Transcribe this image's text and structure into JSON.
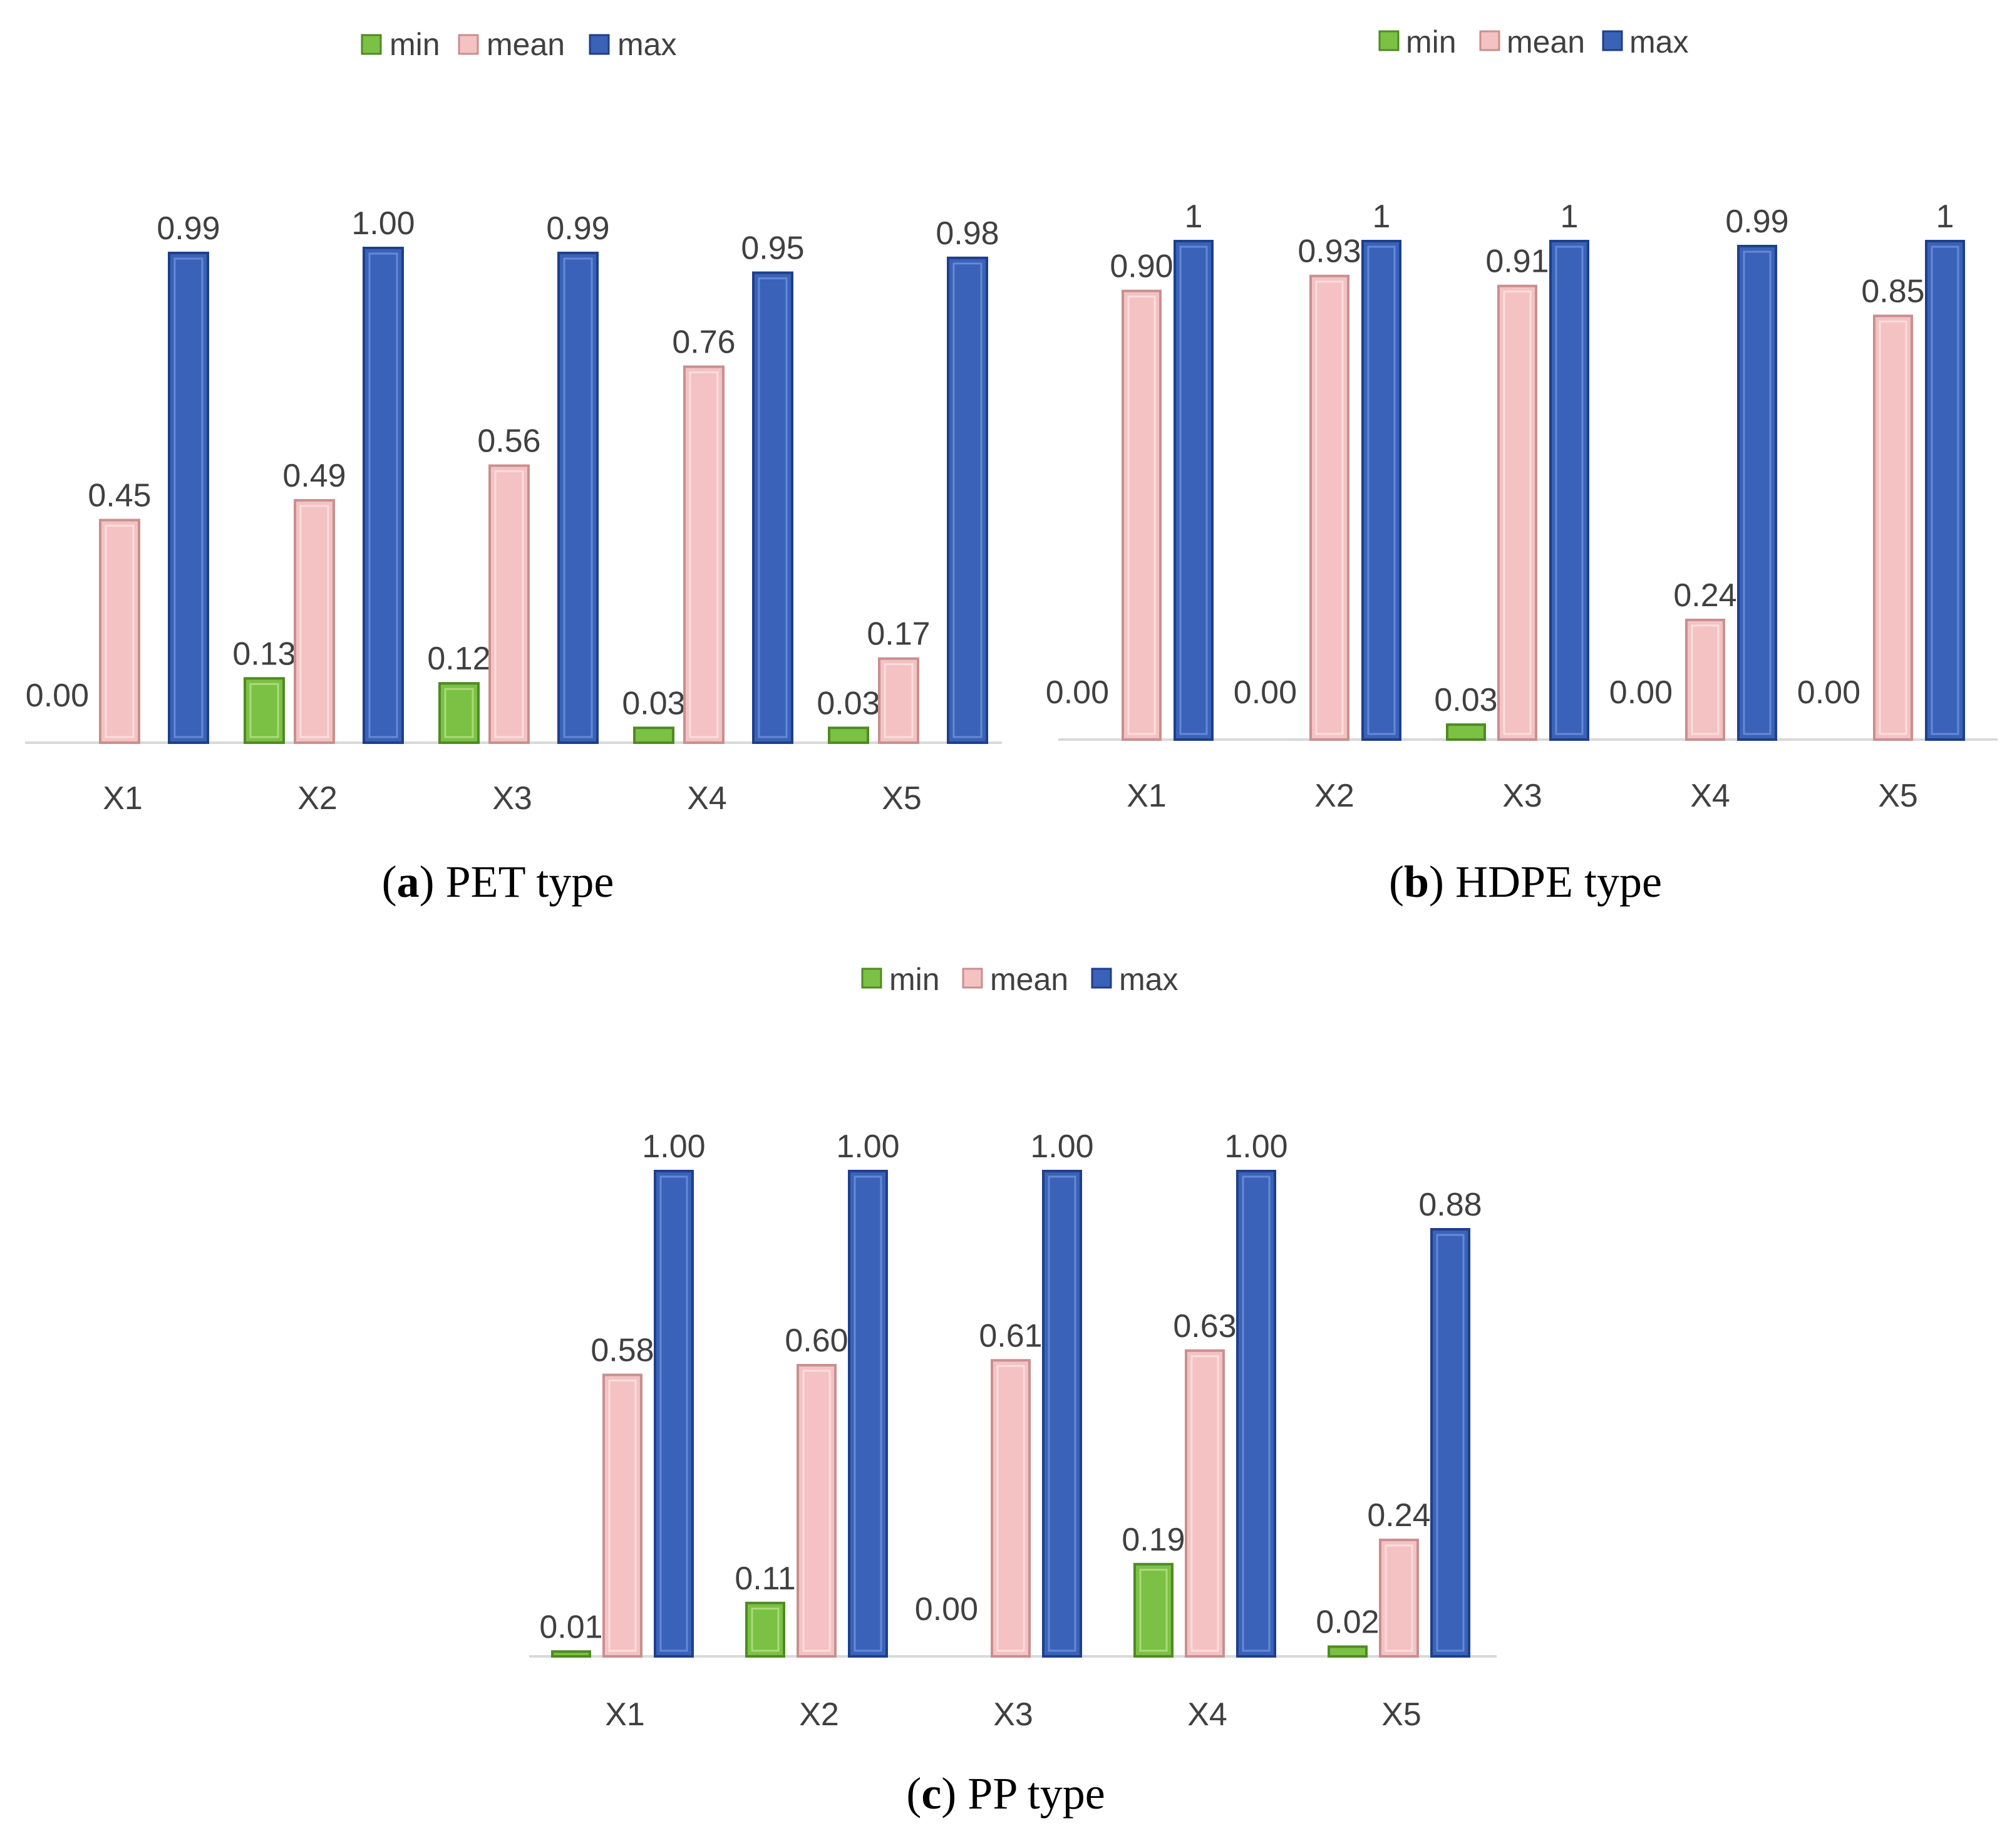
{
  "colors": {
    "min": "#7bc143",
    "mean": "#f4c2c2",
    "max": "#3a62b8",
    "axis": "#d9d9d9",
    "text": "#404040"
  },
  "legend": {
    "min": "min",
    "mean": "mean",
    "max": "max"
  },
  "chart_data": [
    {
      "type": "bar",
      "panel": "a",
      "caption_letter": "a",
      "caption_text": " PET type",
      "categories": [
        "X1",
        "X2",
        "X3",
        "X4",
        "X5"
      ],
      "ylim": [
        0,
        1.0
      ],
      "series": [
        {
          "name": "min",
          "values": [
            0.0,
            0.13,
            0.12,
            0.03,
            0.03
          ],
          "labels": [
            "0.00",
            "0.13",
            "0.12",
            "0.03",
            "0.03"
          ]
        },
        {
          "name": "mean",
          "values": [
            0.45,
            0.49,
            0.56,
            0.76,
            0.17
          ],
          "labels": [
            "0.45",
            "0.49",
            "0.56",
            "0.76",
            "0.17"
          ]
        },
        {
          "name": "max",
          "values": [
            0.99,
            1.0,
            0.99,
            0.95,
            0.98
          ],
          "labels": [
            "0.99",
            "1.00",
            "0.99",
            "0.95",
            "0.98"
          ]
        }
      ]
    },
    {
      "type": "bar",
      "panel": "b",
      "caption_letter": "b",
      "caption_text": " HDPE type",
      "categories": [
        "X1",
        "X2",
        "X3",
        "X4",
        "X5"
      ],
      "ylim": [
        0,
        1.0
      ],
      "series": [
        {
          "name": "min",
          "values": [
            0.0,
            0.0,
            0.03,
            0.0,
            0.0
          ],
          "labels": [
            "0.00",
            "0.00",
            "0.03",
            "0.00",
            "0.00"
          ]
        },
        {
          "name": "mean",
          "values": [
            0.9,
            0.93,
            0.91,
            0.24,
            0.85
          ],
          "labels": [
            "0.90",
            "0.93",
            "0.91",
            "0.24",
            "0.85"
          ]
        },
        {
          "name": "max",
          "values": [
            1,
            1,
            1,
            0.99,
            1
          ],
          "labels": [
            "1",
            "1",
            "1",
            "0.99",
            "1"
          ]
        }
      ]
    },
    {
      "type": "bar",
      "panel": "c",
      "caption_letter": "c",
      "caption_text": " PP type",
      "categories": [
        "X1",
        "X2",
        "X3",
        "X4",
        "X5"
      ],
      "ylim": [
        0,
        1.0
      ],
      "series": [
        {
          "name": "min",
          "values": [
            0.01,
            0.11,
            0.0,
            0.19,
            0.02
          ],
          "labels": [
            "0.01",
            "0.11",
            "0.00",
            "0.19",
            "0.02"
          ]
        },
        {
          "name": "mean",
          "values": [
            0.58,
            0.6,
            0.61,
            0.63,
            0.24
          ],
          "labels": [
            "0.58",
            "0.60",
            "0.61",
            "0.63",
            "0.24"
          ]
        },
        {
          "name": "max",
          "values": [
            1.0,
            1.0,
            1.0,
            1.0,
            0.88
          ],
          "labels": [
            "1.00",
            "1.00",
            "1.00",
            "1.00",
            "0.88"
          ]
        }
      ]
    }
  ]
}
